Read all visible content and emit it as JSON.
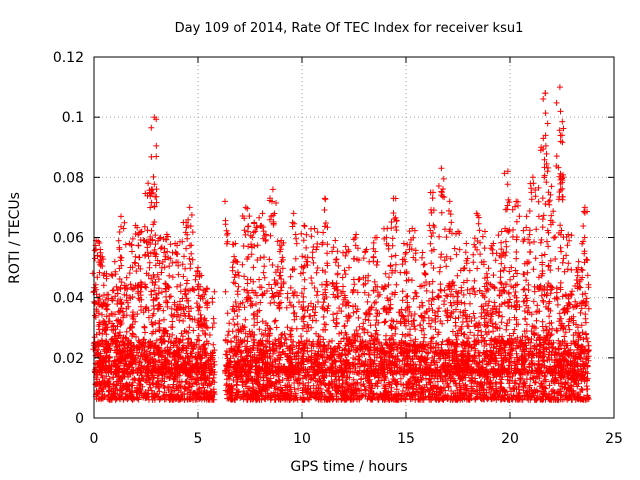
{
  "chart_data": {
    "type": "scatter",
    "title": "Day 109 of 2014, Rate Of TEC Index for receiver ksu1",
    "xlabel": "GPS time / hours",
    "ylabel": "ROTI / TECUs",
    "xlim": [
      0,
      25
    ],
    "ylim": [
      0,
      0.12
    ],
    "xticks": [
      0,
      5,
      10,
      15,
      20,
      25
    ],
    "xtick_labels": [
      "0",
      "5",
      "10",
      "15",
      "20",
      "25"
    ],
    "yticks": [
      0,
      0.02,
      0.04,
      0.06,
      0.08,
      0.1,
      0.12
    ],
    "ytick_labels": [
      "0",
      "0.02",
      "0.04",
      "0.06",
      "0.08",
      "0.1",
      "0.12"
    ],
    "grid": true,
    "marker": "+",
    "marker_color": "#ff0000",
    "series": [
      {
        "name": "ROTI",
        "note": "dense scatter; baseline ~0.005-0.025 TECU/s over 0-5.8h and 6.3-23.8h, gap 5.8-6.3h",
        "peaks": [
          {
            "x": 0.1,
            "y": 0.059
          },
          {
            "x": 0.3,
            "y": 0.056
          },
          {
            "x": 0.6,
            "y": 0.048
          },
          {
            "x": 1.0,
            "y": 0.052
          },
          {
            "x": 1.3,
            "y": 0.067
          },
          {
            "x": 1.7,
            "y": 0.058
          },
          {
            "x": 2.0,
            "y": 0.064
          },
          {
            "x": 2.3,
            "y": 0.062
          },
          {
            "x": 2.6,
            "y": 0.078
          },
          {
            "x": 2.8,
            "y": 0.076
          },
          {
            "x": 2.9,
            "y": 0.1
          },
          {
            "x": 3.2,
            "y": 0.06
          },
          {
            "x": 3.5,
            "y": 0.061
          },
          {
            "x": 3.9,
            "y": 0.058
          },
          {
            "x": 4.3,
            "y": 0.065
          },
          {
            "x": 4.6,
            "y": 0.07
          },
          {
            "x": 5.0,
            "y": 0.05
          },
          {
            "x": 5.3,
            "y": 0.041
          },
          {
            "x": 6.3,
            "y": 0.072
          },
          {
            "x": 6.8,
            "y": 0.058
          },
          {
            "x": 7.3,
            "y": 0.07
          },
          {
            "x": 7.7,
            "y": 0.065
          },
          {
            "x": 8.1,
            "y": 0.068
          },
          {
            "x": 8.6,
            "y": 0.076
          },
          {
            "x": 9.0,
            "y": 0.059
          },
          {
            "x": 9.6,
            "y": 0.068
          },
          {
            "x": 10.1,
            "y": 0.064
          },
          {
            "x": 10.6,
            "y": 0.063
          },
          {
            "x": 11.1,
            "y": 0.073
          },
          {
            "x": 11.6,
            "y": 0.059
          },
          {
            "x": 12.1,
            "y": 0.057
          },
          {
            "x": 12.6,
            "y": 0.061
          },
          {
            "x": 13.1,
            "y": 0.056
          },
          {
            "x": 13.6,
            "y": 0.06
          },
          {
            "x": 14.1,
            "y": 0.063
          },
          {
            "x": 14.4,
            "y": 0.073
          },
          {
            "x": 14.9,
            "y": 0.058
          },
          {
            "x": 15.3,
            "y": 0.063
          },
          {
            "x": 15.8,
            "y": 0.055
          },
          {
            "x": 16.3,
            "y": 0.075
          },
          {
            "x": 16.7,
            "y": 0.083
          },
          {
            "x": 17.1,
            "y": 0.072
          },
          {
            "x": 17.5,
            "y": 0.062
          },
          {
            "x": 17.9,
            "y": 0.058
          },
          {
            "x": 18.4,
            "y": 0.068
          },
          {
            "x": 18.8,
            "y": 0.062
          },
          {
            "x": 19.2,
            "y": 0.058
          },
          {
            "x": 19.6,
            "y": 0.062
          },
          {
            "x": 19.9,
            "y": 0.082
          },
          {
            "x": 20.3,
            "y": 0.072
          },
          {
            "x": 20.8,
            "y": 0.067
          },
          {
            "x": 21.1,
            "y": 0.08
          },
          {
            "x": 21.5,
            "y": 0.09
          },
          {
            "x": 21.7,
            "y": 0.108
          },
          {
            "x": 22.0,
            "y": 0.077
          },
          {
            "x": 22.4,
            "y": 0.11
          },
          {
            "x": 22.5,
            "y": 0.094
          },
          {
            "x": 22.8,
            "y": 0.061
          },
          {
            "x": 23.3,
            "y": 0.052
          },
          {
            "x": 23.6,
            "y": 0.07
          }
        ]
      }
    ]
  }
}
